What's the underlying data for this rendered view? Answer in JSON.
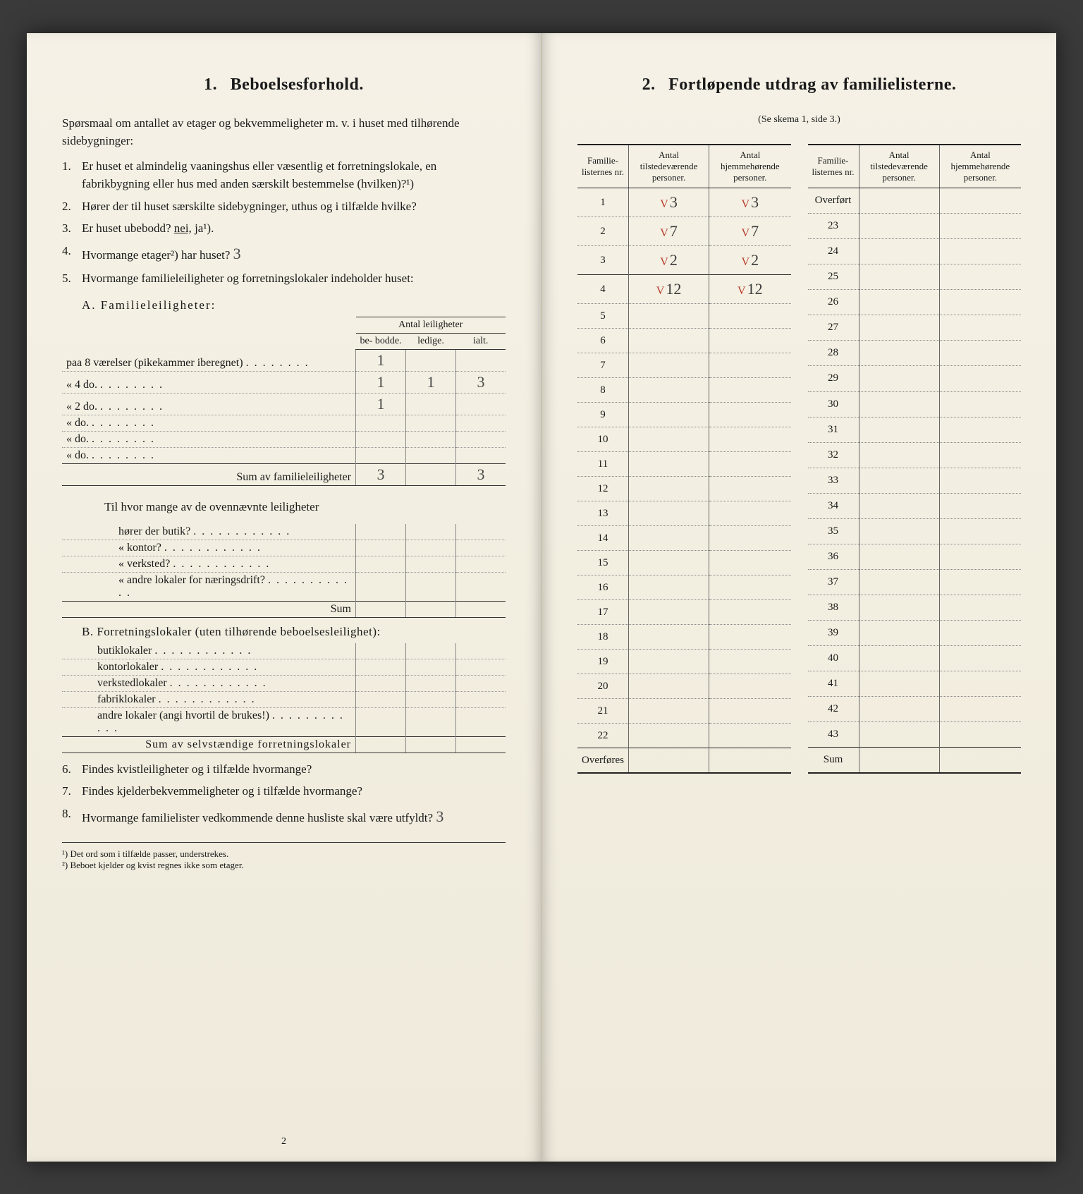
{
  "left": {
    "heading_num": "1.",
    "heading": "Beboelsesforhold.",
    "intro": "Spørsmaal om antallet av etager og bekvemmeligheter m. v. i huset med tilhørende sidebygninger:",
    "q1": "Er huset et almindelig vaaningshus eller væsentlig et forretningslokale, en fabrikbygning eller hus med anden særskilt bestemmelse (hvilken)?¹)",
    "q2": "Hører der til huset særskilte sidebygninger, uthus og i tilfælde hvilke?",
    "q3_pre": "Er huset ubebodd? ",
    "q3_nei": "nei,",
    "q3_ja": "ja¹).",
    "q4_pre": "Hvormange etager²) har huset? ",
    "q4_val": "3",
    "q5": "Hvormange familieleiligheter og forretningslokaler indeholder huset:",
    "labelA": "A. Familieleiligheter:",
    "leilHeaderGroup": "Antal leiligheter",
    "leilHeaders": [
      "be-\nbodde.",
      "ledige.",
      "ialt."
    ],
    "leilRows": [
      {
        "desc": "paa 8 værelser (pikekammer iberegnet)",
        "paa_val": "8",
        "b": "1",
        "l": "",
        "i": ""
      },
      {
        "desc": "« 4 do.",
        "paa_val": "",
        "b": "1",
        "l": "1",
        "i": "3"
      },
      {
        "desc": "« 2 do.",
        "paa_val": "",
        "b": "1",
        "l": "",
        "i": ""
      },
      {
        "desc": "«   do.",
        "paa_val": "",
        "b": "",
        "l": "",
        "i": ""
      },
      {
        "desc": "«   do.",
        "paa_val": "",
        "b": "",
        "l": "",
        "i": ""
      },
      {
        "desc": "«   do.",
        "paa_val": "",
        "b": "",
        "l": "",
        "i": ""
      }
    ],
    "leilSumLabel": "Sum av familieleiligheter",
    "leilSum": {
      "b": "3",
      "l": "",
      "i": "3"
    },
    "tilhvor": "Til hvor mange av de ovennævnte leiligheter",
    "tilRows": [
      "hører der butik?",
      "«  kontor?",
      "«  verksted?",
      "«  andre lokaler for næringsdrift?"
    ],
    "tilSum": "Sum",
    "labelB": "B. Forretningslokaler (uten tilhørende beboelsesleilighet):",
    "bRows": [
      "butiklokaler",
      "kontorlokaler",
      "verkstedlokaler",
      "fabriklokaler",
      "andre lokaler (angi hvortil de brukes!)"
    ],
    "bSum": "Sum av selvstændige forretningslokaler",
    "q6": "Findes kvistleiligheter og i tilfælde hvormange?",
    "q7": "Findes kjelderbekvemmeligheter og i tilfælde hvormange?",
    "q8_pre": "Hvormange familielister vedkommende denne husliste skal være utfyldt? ",
    "q8_val": "3",
    "fn1": "¹) Det ord som i tilfælde passer, understrekes.",
    "fn2": "²) Beboet kjelder og kvist regnes ikke som etager.",
    "pagenum": "2"
  },
  "right": {
    "heading_num": "2.",
    "heading": "Fortløpende utdrag av familielisterne.",
    "sub": "(Se skema 1, side 3.)",
    "cols": [
      "Familie-\nlisternes\nnr.",
      "Antal\ntilstedeværende\npersoner.",
      "Antal\nhjemmehørende\npersoner."
    ],
    "leftRows": [
      {
        "nr": "1",
        "t": "3",
        "h": "3",
        "tick": true
      },
      {
        "nr": "2",
        "t": "7",
        "h": "7",
        "tick": true
      },
      {
        "nr": "3",
        "t": "2",
        "h": "2",
        "tick": true
      },
      {
        "nr": "4",
        "t": "12",
        "h": "12",
        "tick": true,
        "totalAbove": true
      },
      {
        "nr": "5"
      },
      {
        "nr": "6"
      },
      {
        "nr": "7"
      },
      {
        "nr": "8"
      },
      {
        "nr": "9"
      },
      {
        "nr": "10"
      },
      {
        "nr": "11"
      },
      {
        "nr": "12"
      },
      {
        "nr": "13"
      },
      {
        "nr": "14"
      },
      {
        "nr": "15"
      },
      {
        "nr": "16"
      },
      {
        "nr": "17"
      },
      {
        "nr": "18"
      },
      {
        "nr": "19"
      },
      {
        "nr": "20"
      },
      {
        "nr": "21"
      },
      {
        "nr": "22"
      }
    ],
    "leftFooter": "Overføres",
    "rightRows": [
      {
        "nr": "Overført",
        "header": true
      },
      {
        "nr": "23"
      },
      {
        "nr": "24"
      },
      {
        "nr": "25"
      },
      {
        "nr": "26"
      },
      {
        "nr": "27"
      },
      {
        "nr": "28"
      },
      {
        "nr": "29"
      },
      {
        "nr": "30"
      },
      {
        "nr": "31"
      },
      {
        "nr": "32"
      },
      {
        "nr": "33"
      },
      {
        "nr": "34"
      },
      {
        "nr": "35"
      },
      {
        "nr": "36"
      },
      {
        "nr": "37"
      },
      {
        "nr": "38"
      },
      {
        "nr": "39"
      },
      {
        "nr": "40"
      },
      {
        "nr": "41"
      },
      {
        "nr": "42"
      },
      {
        "nr": "43"
      }
    ],
    "rightFooter": "Sum"
  }
}
